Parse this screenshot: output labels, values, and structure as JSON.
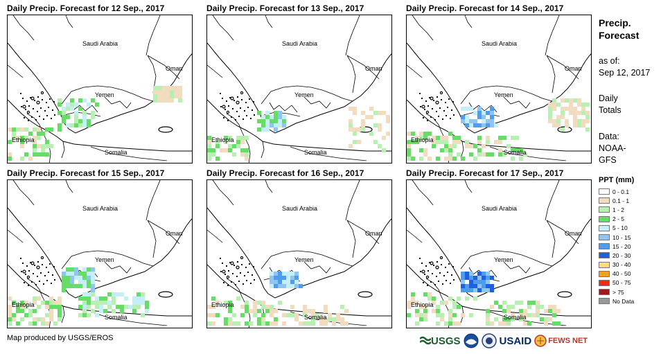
{
  "panels": [
    {
      "title": "Daily Precip. Forecast for 12  Sep., 2017"
    },
    {
      "title": "Daily Precip. Forecast for 13  Sep., 2017"
    },
    {
      "title": "Daily Precip. Forecast for 14  Sep., 2017"
    },
    {
      "title": "Daily Precip. Forecast for 15  Sep., 2017"
    },
    {
      "title": "Daily Precip. Forecast for 16  Sep., 2017"
    },
    {
      "title": "Daily Precip. Forecast for 17  Sep., 2017"
    }
  ],
  "map_labels": {
    "saudi_arabia": "Saudi Arabia",
    "oman": "Oman",
    "yemen": "Yemen",
    "ethiopia": "Ethiopia",
    "somalia": "Somalia"
  },
  "sidebar": {
    "title_line1": "Precip.",
    "title_line2": "Forecast",
    "asof_line1": "as of:",
    "asof_line2": "Sep 12, 2017",
    "daily_line1": "Daily",
    "daily_line2": "Totals",
    "data_line1": "Data:",
    "data_line2": "NOAA-",
    "data_line3": "GFS"
  },
  "legend": {
    "title": "PPT (mm)",
    "items": [
      {
        "label": "0 - 0.1",
        "color": "#ffffff"
      },
      {
        "label": "0.1 - 1",
        "color": "#f2dcbf"
      },
      {
        "label": "1 - 2",
        "color": "#b7f0b1"
      },
      {
        "label": "2 - 5",
        "color": "#66dd66"
      },
      {
        "label": "5 - 10",
        "color": "#c4eef8"
      },
      {
        "label": "10 - 15",
        "color": "#8fc5f0"
      },
      {
        "label": "15 - 20",
        "color": "#4d9cf0"
      },
      {
        "label": "20 - 30",
        "color": "#1f5fe0"
      },
      {
        "label": "30 - 40",
        "color": "#f7e07a"
      },
      {
        "label": "40 - 50",
        "color": "#f5a21b"
      },
      {
        "label": "50 - 75",
        "color": "#ee2b10"
      },
      {
        "label": "> 75",
        "color": "#9a1b1b"
      },
      {
        "label": "No Data",
        "color": "#999999"
      }
    ]
  },
  "credit": "Map produced by USGS/EROS",
  "logos": {
    "usgs": "USGS",
    "noaa": "NOAA",
    "usaid": "USAID",
    "fews": "FEWS NET"
  }
}
